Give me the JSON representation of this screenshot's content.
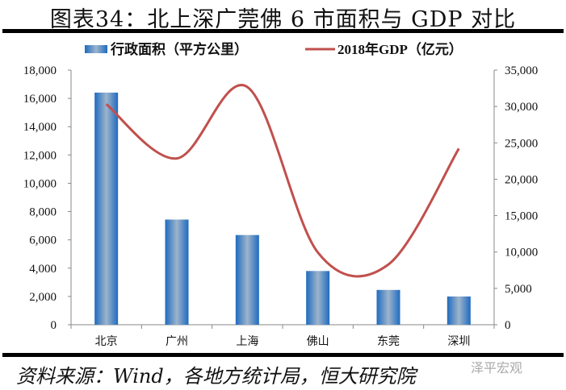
{
  "title": "图表34：北上深广莞佛 6 市面积与 GDP 对比",
  "source": "资料来源：Wind，各地方统计局，恒大研究院",
  "watermark": "泽平宏观",
  "legend": {
    "bar_label": "行政面积（平方公里）",
    "line_label": "2018年GDP（亿元）"
  },
  "colors": {
    "bar": "#1F6BBF",
    "bar_light": "#9DB4CC",
    "line": "#C0504D"
  },
  "chart_data": {
    "type": "bar",
    "title": "图表34：北上深广莞佛 6 市面积与 GDP 对比",
    "categories": [
      "北京",
      "广州",
      "上海",
      "佛山",
      "东莞",
      "深圳"
    ],
    "series": [
      {
        "name": "行政面积（平方公里）",
        "type": "bar",
        "axis": "left",
        "values": [
          16410,
          7434,
          6341,
          3798,
          2460,
          1997
        ]
      },
      {
        "name": "2018年GDP（亿元）",
        "type": "line",
        "axis": "right",
        "values": [
          30320,
          22859,
          32680,
          9936,
          8279,
          24222
        ]
      }
    ],
    "y_left": {
      "min": 0,
      "max": 18000,
      "ticks": [
        "0",
        "2,000",
        "4,000",
        "6,000",
        "8,000",
        "10,000",
        "12,000",
        "14,000",
        "16,000",
        "18,000"
      ]
    },
    "y_right": {
      "min": 0,
      "max": 35000,
      "ticks": [
        "0",
        "5,000",
        "10,000",
        "15,000",
        "20,000",
        "25,000",
        "30,000",
        "35,000"
      ]
    },
    "legend_position": "top",
    "grid": false
  }
}
